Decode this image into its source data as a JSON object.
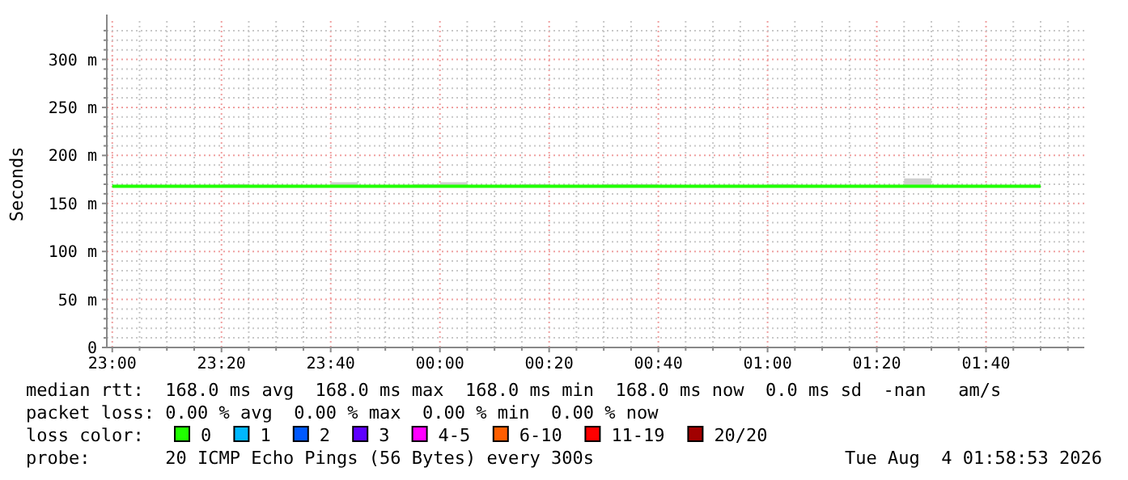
{
  "chart_data": {
    "type": "step",
    "ylabel": "Seconds",
    "legend_title": "loss color:",
    "legend": "bottom",
    "grid": true,
    "x": [
      "2026-08-03T23:00",
      "2026-08-03T23:05",
      "2026-08-03T23:10",
      "2026-08-03T23:15",
      "2026-08-03T23:20",
      "2026-08-03T23:25",
      "2026-08-03T23:30",
      "2026-08-03T23:35",
      "2026-08-03T23:40",
      "2026-08-03T23:45",
      "2026-08-03T23:50",
      "2026-08-03T23:55",
      "2026-08-04T00:00",
      "2026-08-04T00:05",
      "2026-08-04T00:10",
      "2026-08-04T00:15",
      "2026-08-04T00:20",
      "2026-08-04T00:25",
      "2026-08-04T00:30",
      "2026-08-04T00:35",
      "2026-08-04T00:40",
      "2026-08-04T00:45",
      "2026-08-04T00:50",
      "2026-08-04T00:55",
      "2026-08-04T01:00",
      "2026-08-04T01:05",
      "2026-08-04T01:10",
      "2026-08-04T01:15",
      "2026-08-04T01:20",
      "2026-08-04T01:25",
      "2026-08-04T01:30",
      "2026-08-04T01:35",
      "2026-08-04T01:40",
      "2026-08-04T01:45",
      "2026-08-04T01:50"
    ],
    "xlim": [
      "2026-08-03T22:59",
      "2026-08-04T01:58"
    ],
    "xticks": [
      {
        "value": "2026-08-03T23:00",
        "label": "23:00"
      },
      {
        "value": "2026-08-03T23:05",
        "label": null
      },
      {
        "value": "2026-08-03T23:10",
        "label": null
      },
      {
        "value": "2026-08-03T23:15",
        "label": null
      },
      {
        "value": "2026-08-03T23:20",
        "label": "23:20"
      },
      {
        "value": "2026-08-03T23:25",
        "label": null
      },
      {
        "value": "2026-08-03T23:30",
        "label": null
      },
      {
        "value": "2026-08-03T23:35",
        "label": null
      },
      {
        "value": "2026-08-03T23:40",
        "label": "23:40"
      },
      {
        "value": "2026-08-03T23:45",
        "label": null
      },
      {
        "value": "2026-08-03T23:50",
        "label": null
      },
      {
        "value": "2026-08-03T23:55",
        "label": null
      },
      {
        "value": "2026-08-04T00:00",
        "label": "00:00"
      },
      {
        "value": "2026-08-04T00:05",
        "label": null
      },
      {
        "value": "2026-08-04T00:10",
        "label": null
      },
      {
        "value": "2026-08-04T00:15",
        "label": null
      },
      {
        "value": "2026-08-04T00:20",
        "label": "00:20"
      },
      {
        "value": "2026-08-04T00:25",
        "label": null
      },
      {
        "value": "2026-08-04T00:30",
        "label": null
      },
      {
        "value": "2026-08-04T00:35",
        "label": null
      },
      {
        "value": "2026-08-04T00:40",
        "label": "00:40"
      },
      {
        "value": "2026-08-04T00:45",
        "label": null
      },
      {
        "value": "2026-08-04T00:50",
        "label": null
      },
      {
        "value": "2026-08-04T00:55",
        "label": null
      },
      {
        "value": "2026-08-04T01:00",
        "label": "01:00"
      },
      {
        "value": "2026-08-04T01:05",
        "label": null
      },
      {
        "value": "2026-08-04T01:10",
        "label": null
      },
      {
        "value": "2026-08-04T01:15",
        "label": null
      },
      {
        "value": "2026-08-04T01:20",
        "label": "01:20"
      },
      {
        "value": "2026-08-04T01:25",
        "label": null
      },
      {
        "value": "2026-08-04T01:30",
        "label": null
      },
      {
        "value": "2026-08-04T01:35",
        "label": null
      },
      {
        "value": "2026-08-04T01:40",
        "label": "01:40"
      },
      {
        "value": "2026-08-04T01:45",
        "label": null
      },
      {
        "value": "2026-08-04T01:50",
        "label": null
      },
      {
        "value": "2026-08-04T01:55",
        "label": null
      }
    ],
    "ylim": [
      0,
      340
    ],
    "yticks": [
      {
        "value": 0,
        "label": "0"
      },
      {
        "value": 10,
        "label": null
      },
      {
        "value": 20,
        "label": null
      },
      {
        "value": 30,
        "label": null
      },
      {
        "value": 40,
        "label": null
      },
      {
        "value": 50,
        "label": "50 m"
      },
      {
        "value": 60,
        "label": null
      },
      {
        "value": 70,
        "label": null
      },
      {
        "value": 80,
        "label": null
      },
      {
        "value": 90,
        "label": null
      },
      {
        "value": 100,
        "label": "100 m"
      },
      {
        "value": 110,
        "label": null
      },
      {
        "value": 120,
        "label": null
      },
      {
        "value": 130,
        "label": null
      },
      {
        "value": 140,
        "label": null
      },
      {
        "value": 150,
        "label": "150 m"
      },
      {
        "value": 160,
        "label": null
      },
      {
        "value": 170,
        "label": null
      },
      {
        "value": 180,
        "label": null
      },
      {
        "value": 190,
        "label": null
      },
      {
        "value": 200,
        "label": "200 m"
      },
      {
        "value": 210,
        "label": null
      },
      {
        "value": 220,
        "label": null
      },
      {
        "value": 230,
        "label": null
      },
      {
        "value": 240,
        "label": null
      },
      {
        "value": 250,
        "label": "250 m"
      },
      {
        "value": 260,
        "label": null
      },
      {
        "value": 270,
        "label": null
      },
      {
        "value": 280,
        "label": null
      },
      {
        "value": 290,
        "label": null
      },
      {
        "value": 300,
        "label": "300 m"
      },
      {
        "value": 310,
        "label": null
      },
      {
        "value": 320,
        "label": null
      },
      {
        "value": 330,
        "label": null
      }
    ],
    "series": [
      {
        "name": "0",
        "color": "#20ff00",
        "values": [
          168,
          168,
          168,
          168,
          168,
          168,
          168,
          168,
          168,
          168,
          168,
          168,
          168,
          168,
          168,
          168,
          168,
          168,
          168,
          168,
          168,
          168,
          168,
          168,
          168,
          168,
          168,
          168,
          168,
          168,
          168,
          168,
          168,
          168,
          168
        ],
        "lower": [
          168,
          168,
          168,
          168,
          168,
          168,
          168,
          168,
          168,
          168,
          168,
          168,
          168,
          168,
          168,
          168,
          168,
          168,
          168,
          168,
          168,
          168,
          168,
          168,
          168,
          168,
          168,
          168,
          168,
          168,
          168,
          168,
          168,
          168,
          168
        ],
        "upper": [
          168,
          168,
          168,
          168,
          170,
          168,
          168,
          168,
          172,
          168,
          168,
          170,
          172,
          168,
          168,
          170,
          168,
          168,
          170,
          170,
          168,
          168,
          168,
          168,
          170,
          168,
          168,
          168,
          168,
          176,
          168,
          168,
          168,
          168,
          168
        ]
      },
      {
        "name": "1",
        "color": "#00b8ff",
        "values": [
          null,
          null,
          null,
          null,
          null,
          null,
          null,
          null,
          null,
          null,
          null,
          null,
          null,
          null,
          null,
          null,
          null,
          null,
          null,
          null,
          null,
          null,
          null,
          null,
          null,
          null,
          null,
          null,
          null,
          null,
          null,
          null,
          null,
          null,
          null
        ]
      },
      {
        "name": "2",
        "color": "#0059ff",
        "values": [
          null,
          null,
          null,
          null,
          null,
          null,
          null,
          null,
          null,
          null,
          null,
          null,
          null,
          null,
          null,
          null,
          null,
          null,
          null,
          null,
          null,
          null,
          null,
          null,
          null,
          null,
          null,
          null,
          null,
          null,
          null,
          null,
          null,
          null,
          null
        ]
      },
      {
        "name": "3",
        "color": "#5e00ff",
        "values": [
          null,
          null,
          null,
          null,
          null,
          null,
          null,
          null,
          null,
          null,
          null,
          null,
          null,
          null,
          null,
          null,
          null,
          null,
          null,
          null,
          null,
          null,
          null,
          null,
          null,
          null,
          null,
          null,
          null,
          null,
          null,
          null,
          null,
          null,
          null
        ]
      },
      {
        "name": "4-5",
        "color": "#ff00ff",
        "values": [
          null,
          null,
          null,
          null,
          null,
          null,
          null,
          null,
          null,
          null,
          null,
          null,
          null,
          null,
          null,
          null,
          null,
          null,
          null,
          null,
          null,
          null,
          null,
          null,
          null,
          null,
          null,
          null,
          null,
          null,
          null,
          null,
          null,
          null,
          null
        ]
      },
      {
        "name": "6-10",
        "color": "#ff5e00",
        "values": [
          null,
          null,
          null,
          null,
          null,
          null,
          null,
          null,
          null,
          null,
          null,
          null,
          null,
          null,
          null,
          null,
          null,
          null,
          null,
          null,
          null,
          null,
          null,
          null,
          null,
          null,
          null,
          null,
          null,
          null,
          null,
          null,
          null,
          null,
          null
        ]
      },
      {
        "name": "11-19",
        "color": "#ff0000",
        "values": [
          null,
          null,
          null,
          null,
          null,
          null,
          null,
          null,
          null,
          null,
          null,
          null,
          null,
          null,
          null,
          null,
          null,
          null,
          null,
          null,
          null,
          null,
          null,
          null,
          null,
          null,
          null,
          null,
          null,
          null,
          null,
          null,
          null,
          null,
          null
        ]
      },
      {
        "name": "20/20",
        "color": "#a10000",
        "values": [
          null,
          null,
          null,
          null,
          null,
          null,
          null,
          null,
          null,
          null,
          null,
          null,
          null,
          null,
          null,
          null,
          null,
          null,
          null,
          null,
          null,
          null,
          null,
          null,
          null,
          null,
          null,
          null,
          null,
          null,
          null,
          null,
          null,
          null,
          null
        ]
      }
    ],
    "annotations": [
      "median rtt:  168.0 ms avg  168.0 ms max  168.0 ms min  168.0 ms now  0.0 ms sd  -nan   am/s",
      "packet loss: 0.00 % avg  0.00 % max  0.00 % min  0.00 % now",
      "probe:       20 ICMP Echo Pings (56 Bytes) every 300s",
      "Tue Aug  4 01:58:53 2026"
    ]
  }
}
